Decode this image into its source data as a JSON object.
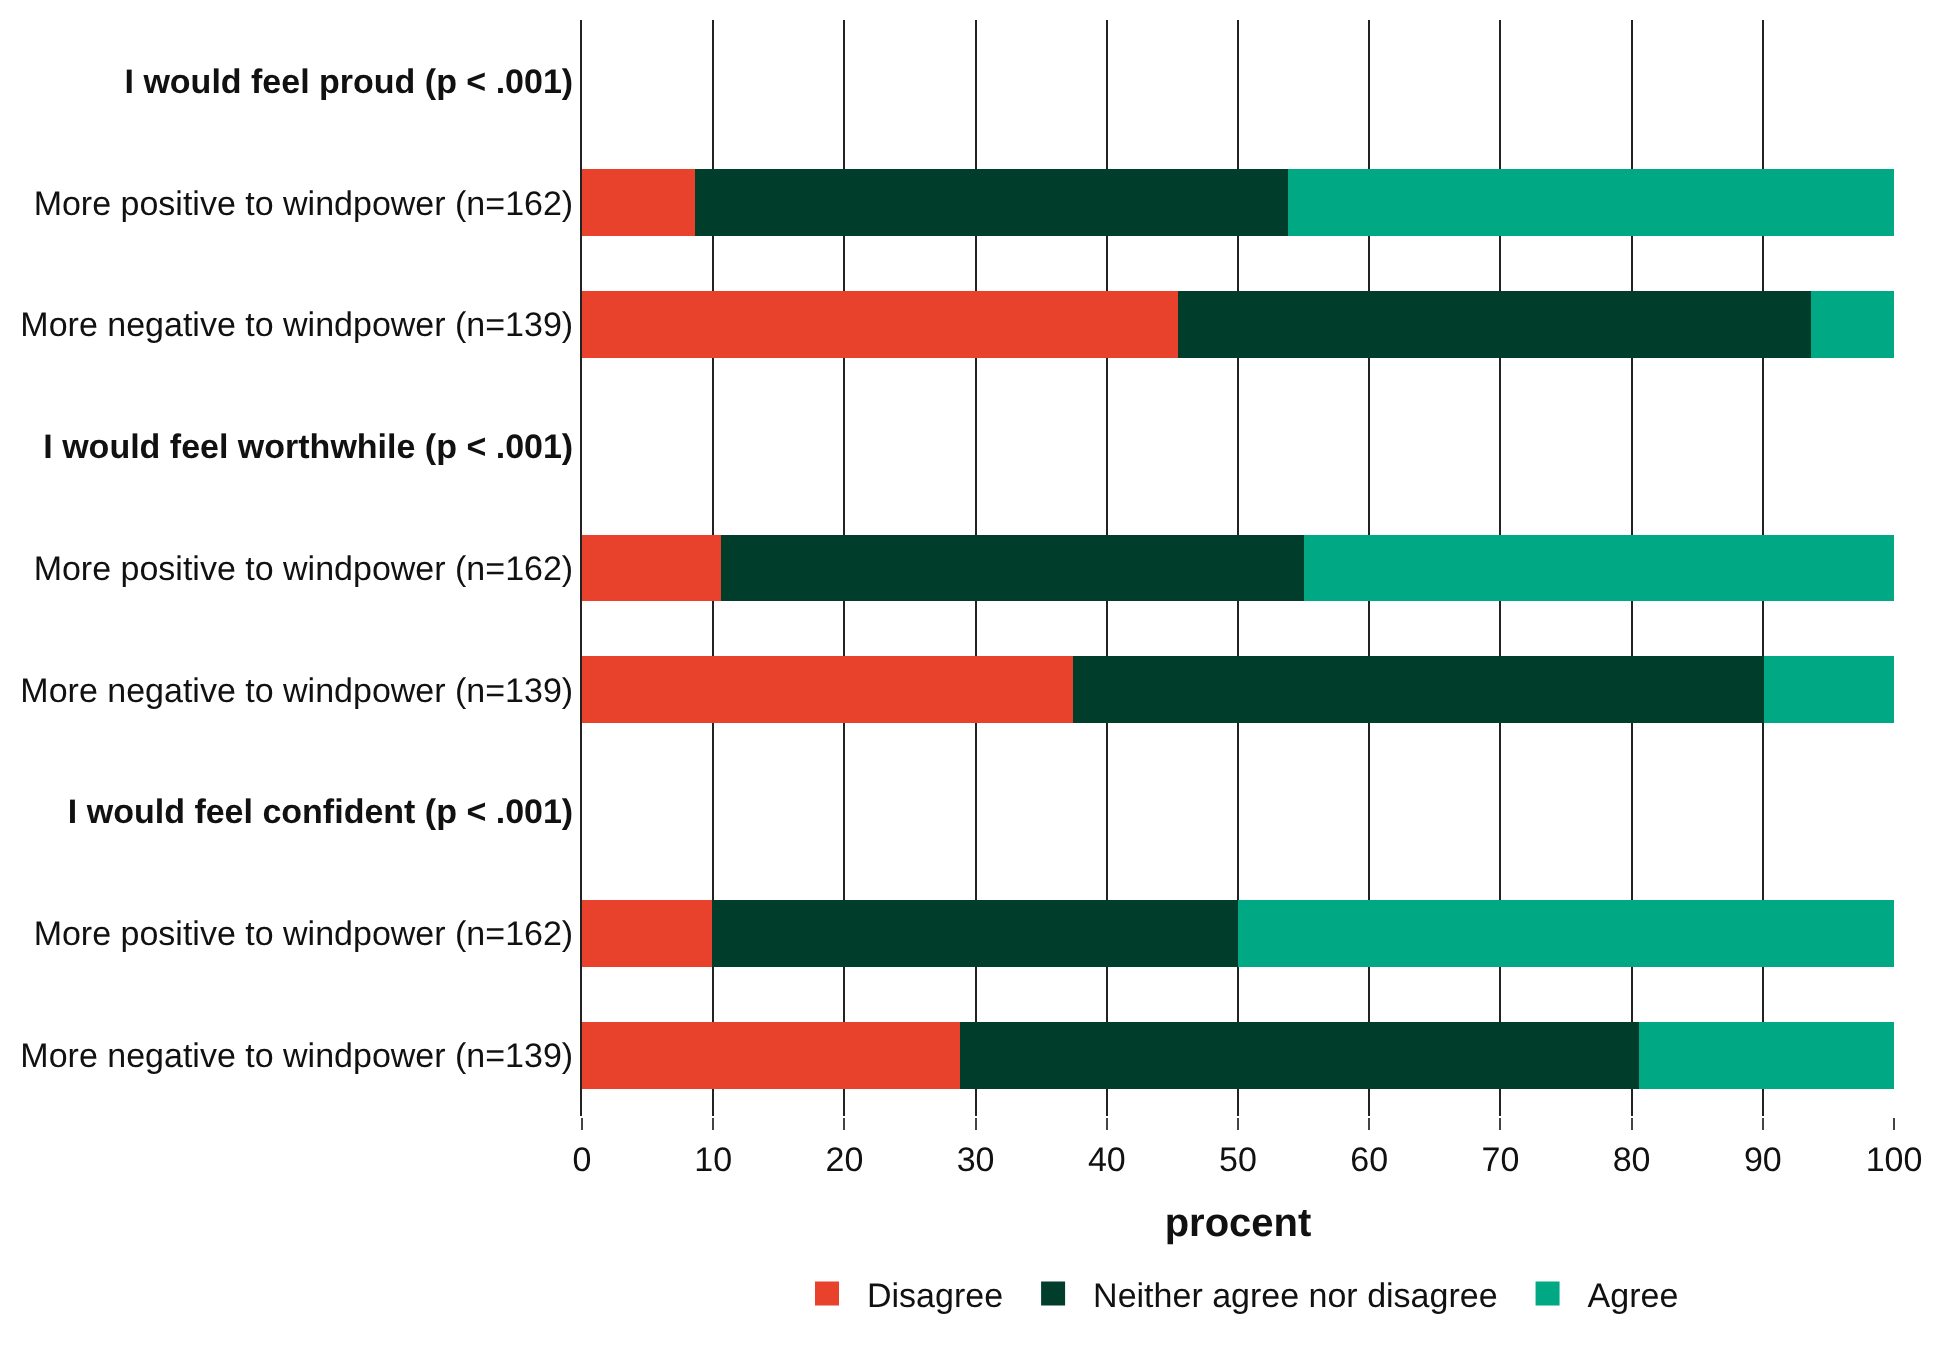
{
  "chart_data": {
    "type": "bar",
    "orientation": "horizontal",
    "stacked": true,
    "xlabel": "procent",
    "categories": [
      "I would feel proud (p < .001)",
      "More positive to windpower (n=162)",
      "More negative to windpower (n=139)",
      "I would feel worthwhile (p < .001)",
      "More positive to windpower (n=162)",
      "More negative to windpower (n=139)",
      "I would feel confident (p < .001)",
      "More positive to windpower (n=162)",
      "More negative to windpower (n=139)"
    ],
    "series": [
      {
        "name": "Disagree",
        "color": "#e8412c",
        "values": [
          null,
          8.6,
          45.4,
          null,
          10.6,
          37.4,
          null,
          9.9,
          28.8
        ]
      },
      {
        "name": "Neither agree nor disagree",
        "color": "#003d2b",
        "values": [
          null,
          45.2,
          48.3,
          null,
          44.4,
          52.7,
          null,
          40.1,
          51.8
        ]
      },
      {
        "name": "Agree",
        "color": "#00a884",
        "values": [
          null,
          46.2,
          6.3,
          null,
          45.0,
          9.9,
          null,
          50.0,
          19.4
        ]
      }
    ],
    "xlim": [
      0,
      100
    ],
    "xticks": [
      0,
      10,
      20,
      30,
      40,
      50,
      60,
      70,
      80,
      90,
      100
    ],
    "grid": "x",
    "legend": "bottom"
  }
}
